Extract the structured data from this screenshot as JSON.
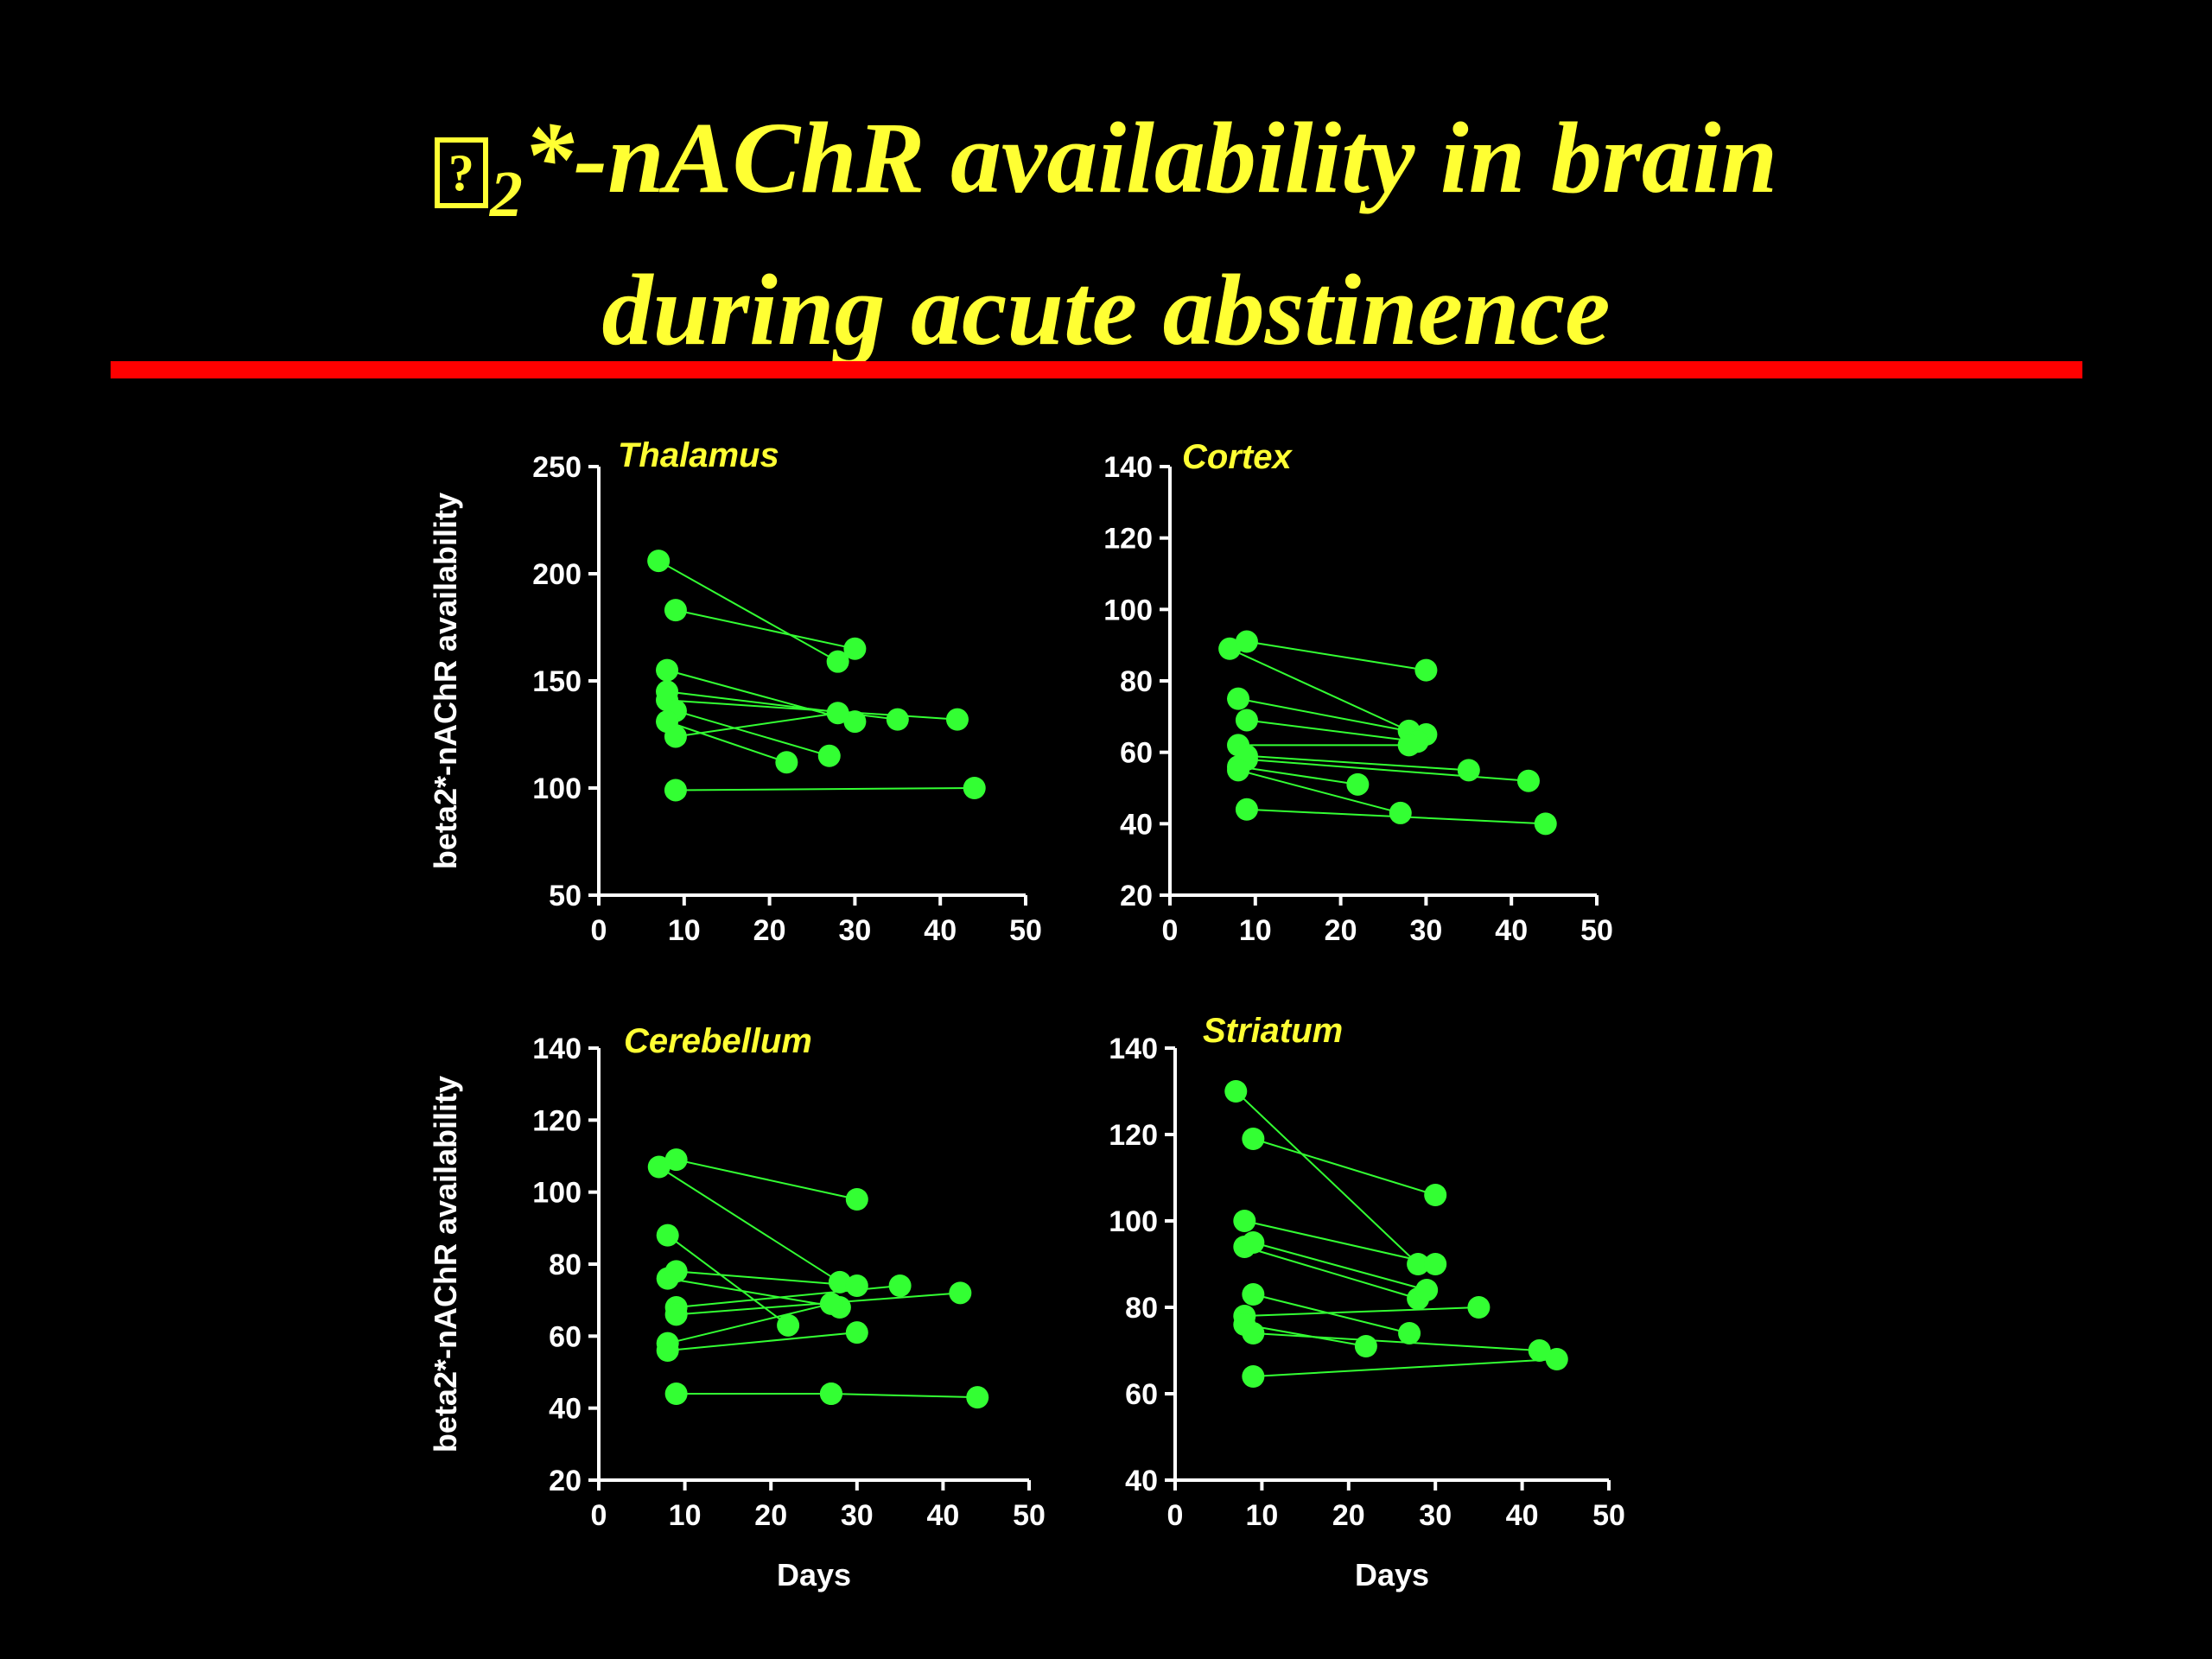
{
  "slide": {
    "title_symbol": "?",
    "title_sub": "2",
    "title_line1_rest": "*-nAChR availability in brain",
    "title_line2": "during acute abstinence"
  },
  "colors": {
    "background": "#000000",
    "title": "#FFFF33",
    "rule": "#FF0000",
    "axis": "#FFFFFF",
    "panel_title": "#FFFF33",
    "data": "#33FF33"
  },
  "chart_data": [
    {
      "type": "scatter",
      "title": "Thalamus",
      "xlabel": "",
      "ylabel": "beta2*-nAChR availability",
      "xlim": [
        0,
        50
      ],
      "ylim": [
        50,
        250
      ],
      "xticks": [
        0,
        10,
        20,
        30,
        40,
        50
      ],
      "yticks": [
        50,
        100,
        150,
        200,
        250
      ],
      "grid": false,
      "pairs": [
        [
          [
            7,
            206
          ],
          [
            28,
            159
          ]
        ],
        [
          [
            9,
            183
          ],
          [
            30,
            165
          ]
        ],
        [
          [
            8,
            155
          ],
          [
            30,
            131
          ]
        ],
        [
          [
            8,
            145
          ],
          [
            35,
            132
          ]
        ],
        [
          [
            8,
            141
          ],
          [
            42,
            132
          ]
        ],
        [
          [
            9,
            136
          ],
          [
            27,
            115
          ]
        ],
        [
          [
            8,
            131
          ],
          [
            22,
            112
          ]
        ],
        [
          [
            9,
            124
          ],
          [
            28,
            135
          ]
        ],
        [
          [
            9,
            99
          ],
          [
            44,
            100
          ]
        ]
      ]
    },
    {
      "type": "scatter",
      "title": "Cortex",
      "xlabel": "",
      "ylabel": "",
      "xlim": [
        0,
        50
      ],
      "ylim": [
        20,
        140
      ],
      "xticks": [
        0,
        10,
        20,
        30,
        40,
        50
      ],
      "yticks": [
        20,
        40,
        60,
        80,
        100,
        120,
        140
      ],
      "grid": false,
      "pairs": [
        [
          [
            7,
            89
          ],
          [
            28,
            66
          ]
        ],
        [
          [
            9,
            91
          ],
          [
            30,
            83
          ]
        ],
        [
          [
            8,
            75
          ],
          [
            30,
            65
          ]
        ],
        [
          [
            9,
            69
          ],
          [
            29,
            63
          ]
        ],
        [
          [
            8,
            62
          ],
          [
            28,
            62
          ]
        ],
        [
          [
            9,
            59
          ],
          [
            35,
            55
          ]
        ],
        [
          [
            8,
            56
          ],
          [
            22,
            51
          ]
        ],
        [
          [
            9,
            58
          ],
          [
            42,
            52
          ]
        ],
        [
          [
            8,
            55
          ],
          [
            27,
            43
          ]
        ],
        [
          [
            9,
            44
          ],
          [
            44,
            40
          ]
        ]
      ]
    },
    {
      "type": "scatter",
      "title": "Cerebellum",
      "xlabel": "Days",
      "ylabel": "beta2*-nAChR availability",
      "xlim": [
        0,
        50
      ],
      "ylim": [
        20,
        140
      ],
      "xticks": [
        0,
        10,
        20,
        30,
        40,
        50
      ],
      "yticks": [
        20,
        40,
        60,
        80,
        100,
        120,
        140
      ],
      "grid": false,
      "pairs": [
        [
          [
            7,
            107
          ],
          [
            28,
            75
          ]
        ],
        [
          [
            9,
            109
          ],
          [
            30,
            98
          ]
        ],
        [
          [
            8,
            88
          ],
          [
            22,
            63
          ]
        ],
        [
          [
            8,
            76
          ],
          [
            28,
            68
          ]
        ],
        [
          [
            9,
            78
          ],
          [
            30,
            74
          ]
        ],
        [
          [
            9,
            68
          ],
          [
            35,
            74
          ]
        ],
        [
          [
            9,
            66
          ],
          [
            42,
            72
          ]
        ],
        [
          [
            8,
            58
          ],
          [
            27,
            69
          ]
        ],
        [
          [
            8,
            56
          ],
          [
            30,
            61
          ]
        ],
        [
          [
            9,
            44
          ],
          [
            27,
            44
          ]
        ],
        [
          [
            27,
            44
          ],
          [
            44,
            43
          ]
        ]
      ]
    },
    {
      "type": "scatter",
      "title": "Striatum",
      "xlabel": "Days",
      "ylabel": "",
      "xlim": [
        0,
        50
      ],
      "ylim": [
        40,
        140
      ],
      "xticks": [
        0,
        10,
        20,
        30,
        40,
        50
      ],
      "yticks": [
        40,
        60,
        80,
        100,
        120,
        140
      ],
      "grid": false,
      "pairs": [
        [
          [
            7,
            130
          ],
          [
            28,
            90
          ]
        ],
        [
          [
            9,
            119
          ],
          [
            30,
            106
          ]
        ],
        [
          [
            8,
            100
          ],
          [
            30,
            90
          ]
        ],
        [
          [
            8,
            94
          ],
          [
            28,
            82
          ]
        ],
        [
          [
            9,
            95
          ],
          [
            29,
            84
          ]
        ],
        [
          [
            9,
            83
          ],
          [
            27,
            74
          ]
        ],
        [
          [
            8,
            78
          ],
          [
            35,
            80
          ]
        ],
        [
          [
            8,
            76
          ],
          [
            22,
            71
          ]
        ],
        [
          [
            9,
            74
          ],
          [
            42,
            70
          ]
        ],
        [
          [
            9,
            64
          ],
          [
            44,
            68
          ]
        ]
      ]
    }
  ]
}
